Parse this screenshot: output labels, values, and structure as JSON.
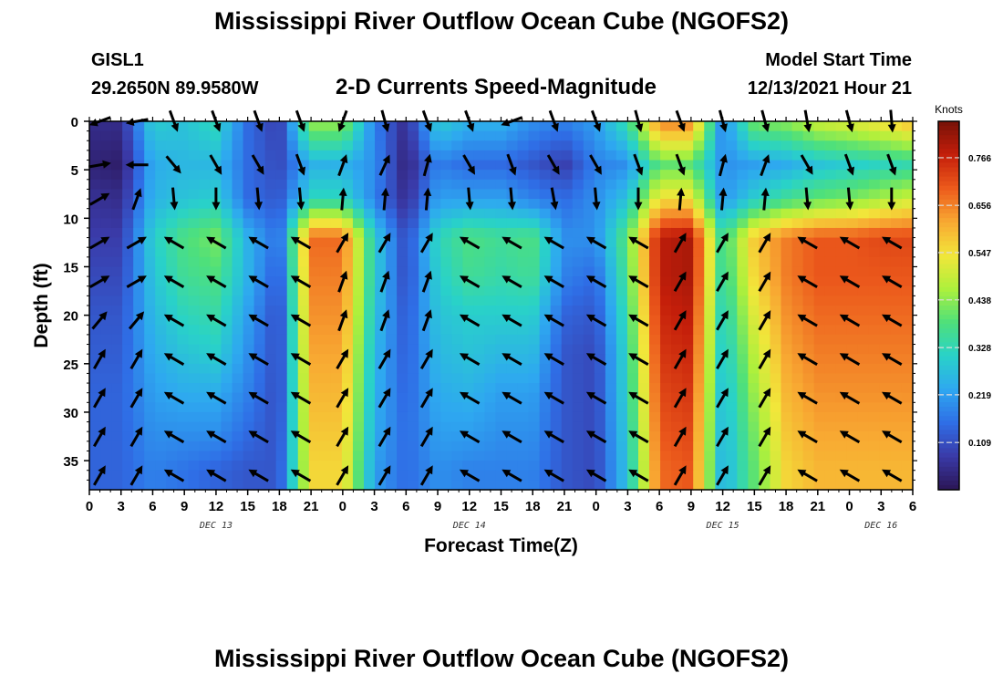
{
  "header": {
    "title": "Mississippi River Outflow Ocean Cube (NGOFS2)",
    "station": "GISL1",
    "coords": "29.2650N  89.9580W",
    "subtitle": "2-D Currents Speed-Magnitude",
    "model_start_label": "Model Start Time",
    "model_start_value": "12/13/2021 Hour 21"
  },
  "footer": {
    "title": "Mississippi River Outflow Ocean Cube (NGOFS2)"
  },
  "chart_data": {
    "type": "heatmap",
    "ylabel": "Depth (ft)",
    "xlabel": "Forecast Time(Z)",
    "y_inverted": true,
    "ylim": [
      0,
      38
    ],
    "y_ticks": [
      "0",
      "5",
      "10",
      "15",
      "20",
      "25",
      "30",
      "35"
    ],
    "x_ticks": [
      "0",
      "3",
      "6",
      "9",
      "12",
      "15",
      "18",
      "21",
      "0",
      "3",
      "6",
      "9",
      "12",
      "15",
      "18",
      "21",
      "0",
      "3",
      "6",
      "9",
      "12",
      "15",
      "18",
      "21",
      "0",
      "3",
      "6"
    ],
    "date_labels": [
      "DEC 13",
      "DEC 14",
      "DEC 15",
      "DEC 16"
    ],
    "colorbar": {
      "unit": "Knots",
      "ticks": [
        "0.766",
        "0.656",
        "0.547",
        "0.438",
        "0.328",
        "0.219",
        "0.109"
      ],
      "range": [
        0,
        0.85
      ],
      "colors": [
        "#2b1555",
        "#3a3aa8",
        "#2f6ee6",
        "#2ea8f0",
        "#29d2c8",
        "#4fe07a",
        "#aef03c",
        "#f2e63a",
        "#f8a832",
        "#ec5a1c",
        "#c41e0a",
        "#761208"
      ]
    },
    "time_points": [
      0,
      3,
      6,
      9,
      12,
      15,
      18,
      21,
      24,
      27,
      30,
      33,
      36,
      39,
      42,
      45,
      48,
      51,
      54,
      57,
      60,
      63,
      66,
      69,
      72,
      75,
      78
    ],
    "depth_levels": [
      0,
      4.5,
      8,
      12,
      16,
      20,
      24,
      28,
      32,
      36
    ],
    "speed": [
      [
        0.05,
        0.05,
        0.3,
        0.28,
        0.33,
        0.15,
        0.08,
        0.45,
        0.45,
        0.18,
        0.05,
        0.3,
        0.25,
        0.25,
        0.2,
        0.18,
        0.22,
        0.35,
        0.66,
        0.66,
        0.18,
        0.42,
        0.44,
        0.5,
        0.52,
        0.55,
        0.6
      ],
      [
        0.03,
        0.02,
        0.24,
        0.26,
        0.26,
        0.15,
        0.1,
        0.25,
        0.25,
        0.2,
        0.03,
        0.18,
        0.15,
        0.15,
        0.12,
        0.08,
        0.18,
        0.2,
        0.4,
        0.4,
        0.2,
        0.22,
        0.24,
        0.28,
        0.3,
        0.32,
        0.34
      ],
      [
        0.06,
        0.05,
        0.25,
        0.28,
        0.3,
        0.15,
        0.12,
        0.32,
        0.32,
        0.18,
        0.05,
        0.22,
        0.22,
        0.22,
        0.18,
        0.15,
        0.2,
        0.28,
        0.55,
        0.55,
        0.2,
        0.3,
        0.36,
        0.4,
        0.42,
        0.46,
        0.5
      ],
      [
        0.08,
        0.08,
        0.3,
        0.38,
        0.42,
        0.25,
        0.15,
        0.68,
        0.68,
        0.3,
        0.1,
        0.32,
        0.38,
        0.36,
        0.38,
        0.2,
        0.2,
        0.4,
        0.78,
        0.8,
        0.35,
        0.58,
        0.66,
        0.7,
        0.7,
        0.72,
        0.72
      ],
      [
        0.1,
        0.1,
        0.28,
        0.36,
        0.38,
        0.25,
        0.12,
        0.66,
        0.66,
        0.3,
        0.1,
        0.3,
        0.36,
        0.34,
        0.36,
        0.18,
        0.15,
        0.38,
        0.78,
        0.8,
        0.33,
        0.56,
        0.66,
        0.7,
        0.7,
        0.7,
        0.7
      ],
      [
        0.12,
        0.12,
        0.26,
        0.32,
        0.34,
        0.22,
        0.1,
        0.64,
        0.64,
        0.28,
        0.12,
        0.28,
        0.3,
        0.3,
        0.3,
        0.14,
        0.12,
        0.35,
        0.76,
        0.78,
        0.3,
        0.52,
        0.64,
        0.68,
        0.68,
        0.68,
        0.68
      ],
      [
        0.13,
        0.13,
        0.24,
        0.28,
        0.3,
        0.2,
        0.1,
        0.62,
        0.62,
        0.26,
        0.13,
        0.26,
        0.28,
        0.26,
        0.26,
        0.12,
        0.1,
        0.33,
        0.74,
        0.76,
        0.28,
        0.48,
        0.62,
        0.66,
        0.66,
        0.66,
        0.66
      ],
      [
        0.14,
        0.14,
        0.22,
        0.24,
        0.24,
        0.18,
        0.1,
        0.6,
        0.6,
        0.25,
        0.14,
        0.24,
        0.25,
        0.22,
        0.22,
        0.12,
        0.1,
        0.32,
        0.72,
        0.74,
        0.26,
        0.45,
        0.6,
        0.64,
        0.64,
        0.64,
        0.64
      ],
      [
        0.14,
        0.14,
        0.2,
        0.2,
        0.2,
        0.15,
        0.11,
        0.58,
        0.58,
        0.24,
        0.15,
        0.22,
        0.22,
        0.2,
        0.2,
        0.12,
        0.1,
        0.3,
        0.7,
        0.72,
        0.25,
        0.42,
        0.58,
        0.62,
        0.62,
        0.62,
        0.62
      ],
      [
        0.14,
        0.14,
        0.18,
        0.16,
        0.14,
        0.12,
        0.12,
        0.56,
        0.56,
        0.22,
        0.15,
        0.2,
        0.18,
        0.18,
        0.18,
        0.12,
        0.1,
        0.28,
        0.68,
        0.7,
        0.24,
        0.4,
        0.56,
        0.6,
        0.6,
        0.6,
        0.6
      ]
    ],
    "arrow_x_times": [
      1,
      4.5,
      8,
      12,
      16,
      20,
      24,
      28,
      32,
      36,
      40,
      44,
      48,
      52,
      56,
      60,
      64,
      68,
      72,
      76
    ],
    "arrow_depths": [
      0,
      4.5,
      8,
      12.5,
      16.5,
      20.5,
      24.5,
      28.5,
      32.5,
      36.5
    ],
    "arrow_directions_deg": [
      [
        250,
        260,
        160,
        160,
        160,
        160,
        200,
        165,
        160,
        160,
        250,
        160,
        160,
        165,
        160,
        165,
        165,
        170,
        165,
        175
      ],
      [
        80,
        270,
        140,
        150,
        150,
        160,
        20,
        25,
        15,
        150,
        160,
        150,
        150,
        160,
        160,
        15,
        20,
        150,
        160,
        160
      ],
      [
        60,
        20,
        175,
        180,
        175,
        175,
        5,
        5,
        5,
        175,
        175,
        170,
        175,
        180,
        5,
        5,
        5,
        175,
        175,
        180
      ],
      [
        60,
        60,
        300,
        300,
        300,
        300,
        30,
        30,
        30,
        300,
        300,
        300,
        300,
        300,
        30,
        30,
        30,
        300,
        300,
        300
      ],
      [
        60,
        60,
        300,
        300,
        300,
        300,
        20,
        20,
        20,
        300,
        300,
        300,
        300,
        300,
        30,
        30,
        30,
        300,
        300,
        300
      ],
      [
        40,
        40,
        300,
        300,
        300,
        300,
        20,
        20,
        20,
        300,
        300,
        300,
        300,
        300,
        30,
        30,
        30,
        300,
        300,
        300
      ],
      [
        30,
        30,
        300,
        300,
        300,
        300,
        30,
        30,
        30,
        300,
        300,
        300,
        300,
        300,
        30,
        30,
        30,
        300,
        300,
        300
      ],
      [
        30,
        30,
        300,
        300,
        300,
        300,
        30,
        30,
        30,
        300,
        300,
        300,
        300,
        300,
        30,
        30,
        30,
        300,
        300,
        300
      ],
      [
        30,
        30,
        300,
        300,
        300,
        300,
        30,
        30,
        30,
        300,
        300,
        300,
        300,
        300,
        30,
        30,
        30,
        300,
        300,
        300
      ],
      [
        30,
        30,
        300,
        300,
        300,
        300,
        30,
        30,
        30,
        300,
        300,
        300,
        300,
        300,
        30,
        30,
        30,
        300,
        300,
        300
      ]
    ]
  }
}
